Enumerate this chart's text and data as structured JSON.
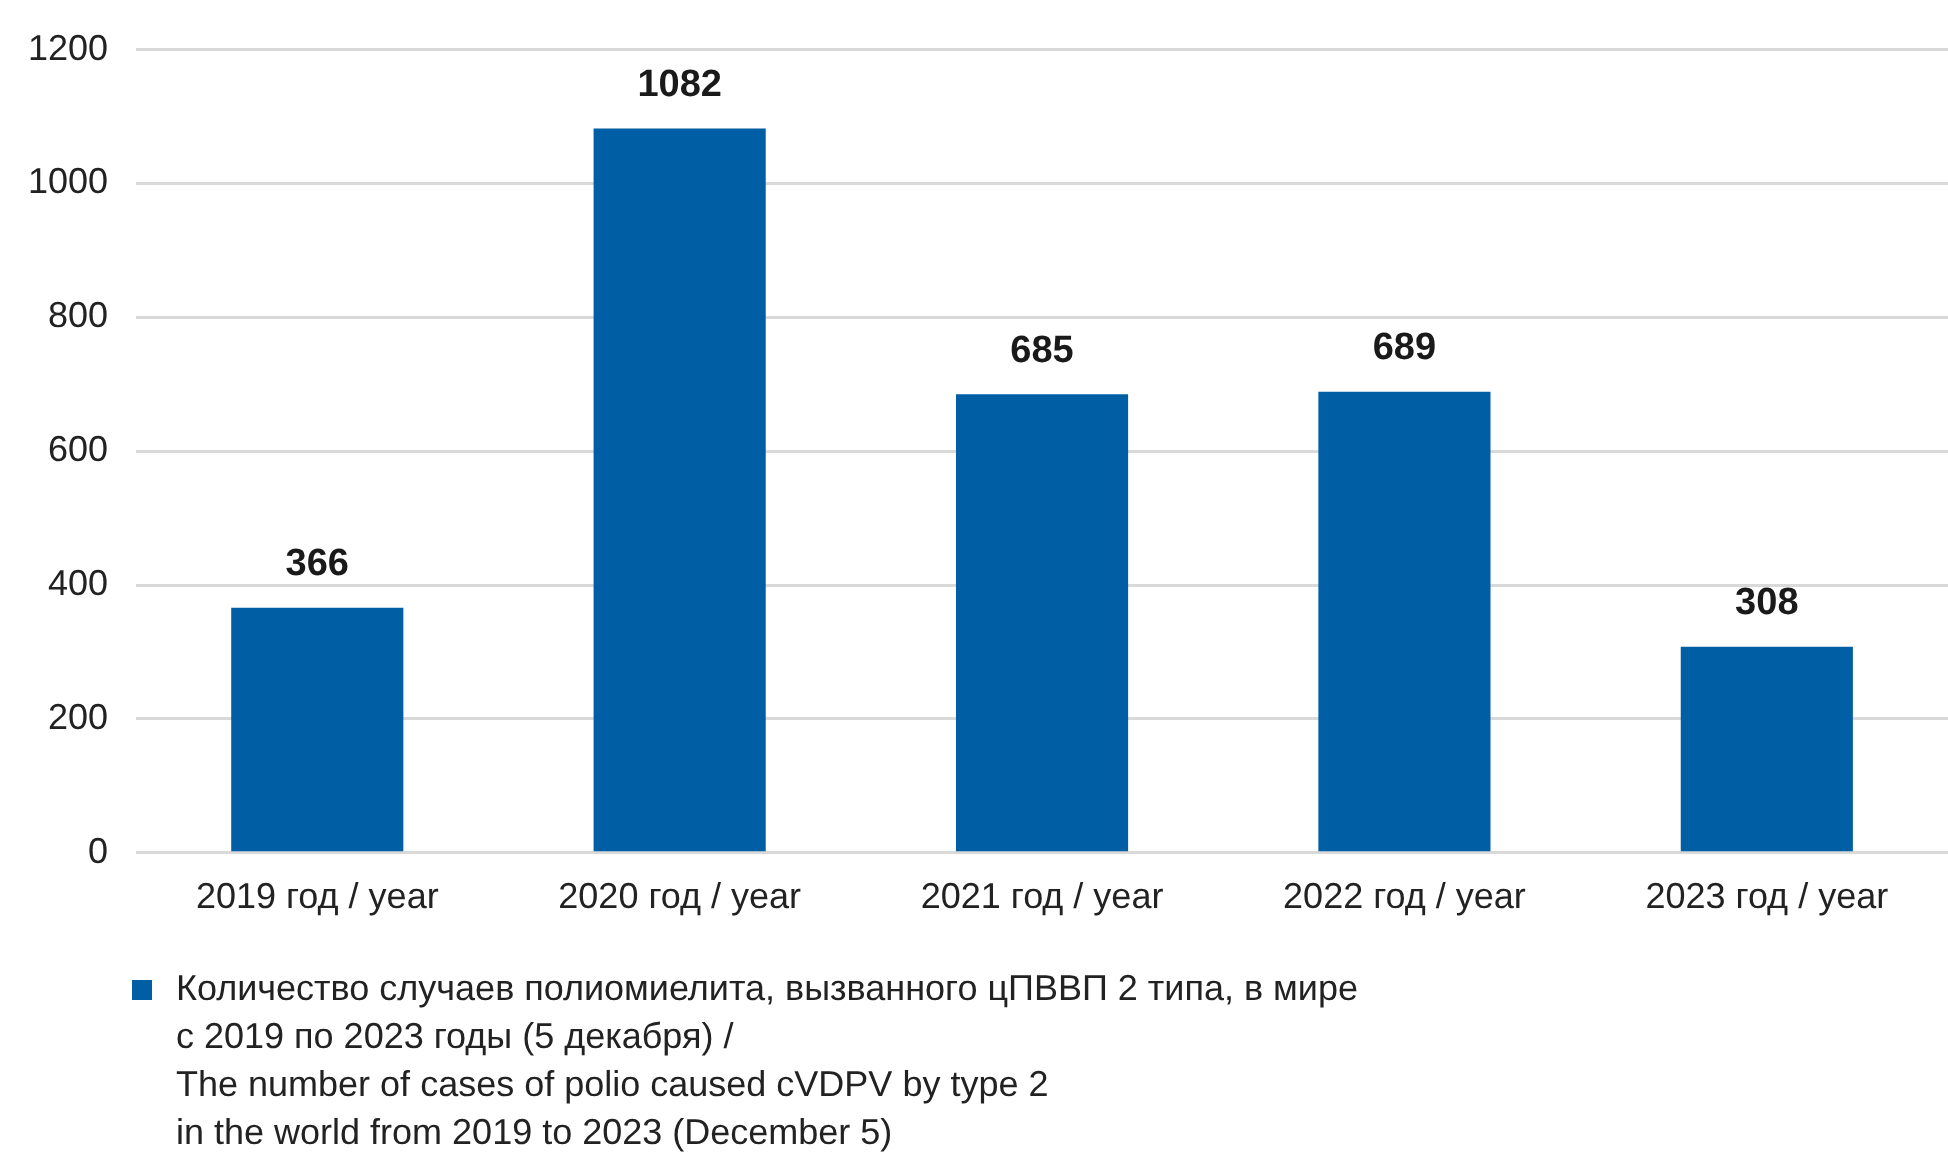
{
  "chart_data": {
    "type": "bar",
    "categories": [
      "2019 год / year",
      "2020 год / year",
      "2021 год / year",
      "2022 год / year",
      "2023 год / year"
    ],
    "series": [
      {
        "name": "Количество случаев полиомиелита, вызванного цПВВП 2 типа, в мире\nс 2019 по 2023 годы (5 декабря) /\nThe number of cases of polio caused cVDPV by type 2\nin the world from 2019 to 2023 (December 5)",
        "color": "#005ea5",
        "values": [
          366,
          1082,
          685,
          689,
          308
        ]
      }
    ],
    "ylim": [
      0,
      1200
    ],
    "yticks": [
      0,
      200,
      400,
      600,
      800,
      1000,
      1200
    ],
    "grid": "y",
    "legend": "bottom",
    "data_labels": true
  }
}
